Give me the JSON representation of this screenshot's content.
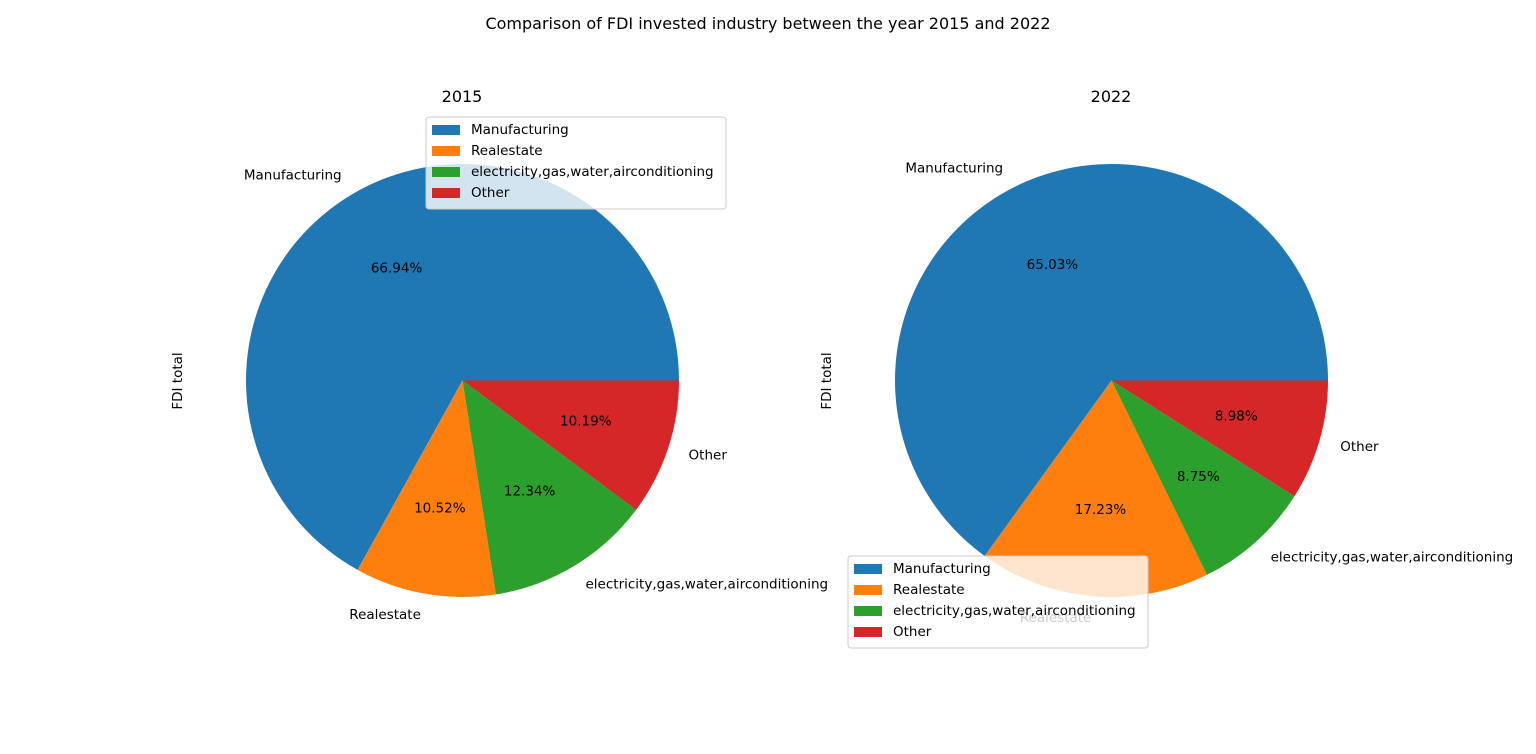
{
  "figure": {
    "title": "Comparison of FDI invested industry between the year 2015 and 2022"
  },
  "chart_data": [
    {
      "type": "pie",
      "title": "2015",
      "ylabel": "FDI total",
      "categories": [
        "Manufacturing",
        "Realestate",
        "electricity,gas,water,airconditioning",
        "Other"
      ],
      "values": [
        66.94,
        10.52,
        12.34,
        10.19
      ],
      "percent_labels": [
        "66.94%",
        "10.52%",
        "12.34%",
        "10.19%"
      ],
      "colors": [
        "#1f77b4",
        "#ff7f0e",
        "#2ca02c",
        "#d62728"
      ],
      "start_angle_deg": 0,
      "direction": "counterclockwise",
      "legend": {
        "placement": "upper-center",
        "entries": [
          "Manufacturing",
          "Realestate",
          "electricity,gas,water,airconditioning",
          "Other"
        ]
      }
    },
    {
      "type": "pie",
      "title": "2022",
      "ylabel": "FDI total",
      "categories": [
        "Manufacturing",
        "Realestate",
        "electricity,gas,water,airconditioning",
        "Other"
      ],
      "values": [
        65.03,
        17.23,
        8.75,
        8.98
      ],
      "percent_labels": [
        "65.03%",
        "17.23%",
        "8.75%",
        "8.98%"
      ],
      "colors": [
        "#1f77b4",
        "#ff7f0e",
        "#2ca02c",
        "#d62728"
      ],
      "start_angle_deg": 0,
      "direction": "counterclockwise",
      "legend": {
        "placement": "lower-left",
        "entries": [
          "Manufacturing",
          "Realestate",
          "electricity,gas,water,airconditioning",
          "Other"
        ]
      }
    }
  ]
}
